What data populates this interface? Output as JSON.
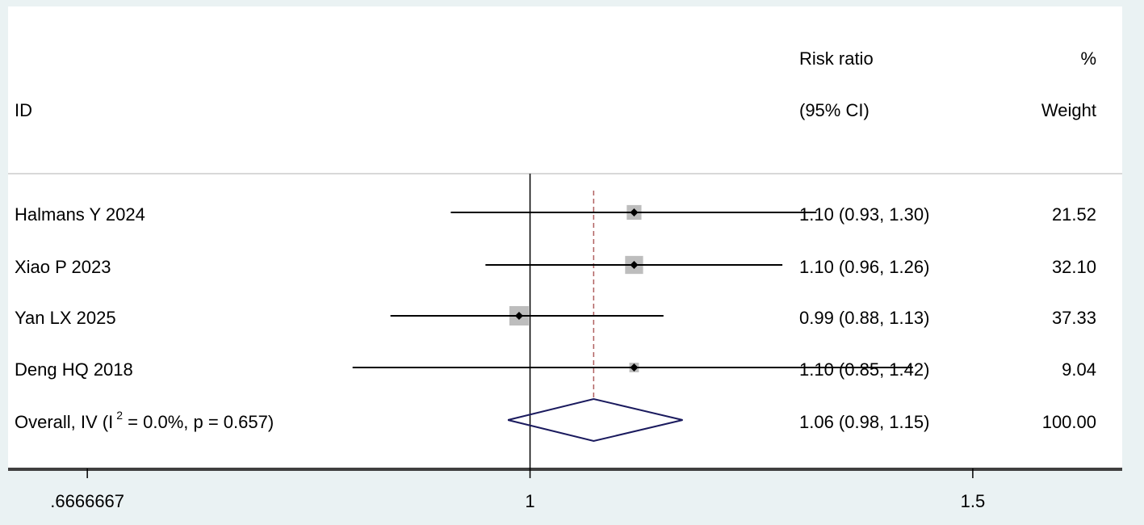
{
  "chart_data": {
    "type": "forest",
    "header": {
      "id": "ID",
      "effect_line1": "Risk ratio",
      "effect_line2": "(95% CI)",
      "weight_line1": "%",
      "weight_line2": "Weight"
    },
    "scale": "log",
    "xlim": [
      0.62,
      1.72
    ],
    "null_value": 1,
    "xticks": [
      {
        "value": 0.6666667,
        "label": ".6666667"
      },
      {
        "value": 1,
        "label": "1"
      },
      {
        "value": 1.5,
        "label": "1.5"
      }
    ],
    "studies": [
      {
        "id": "Halmans Y 2024",
        "rr": 1.1,
        "lo": 0.93,
        "hi": 1.3,
        "rr_text": "1.10 (0.93, 1.30)",
        "weight": "21.52"
      },
      {
        "id": "Xiao P 2023",
        "rr": 1.1,
        "lo": 0.96,
        "hi": 1.26,
        "rr_text": "1.10 (0.96, 1.26)",
        "weight": "32.10"
      },
      {
        "id": "Yan LX 2025",
        "rr": 0.99,
        "lo": 0.88,
        "hi": 1.13,
        "rr_text": "0.99 (0.88, 1.13)",
        "weight": "37.33"
      },
      {
        "id": "Deng HQ 2018",
        "rr": 1.1,
        "lo": 0.85,
        "hi": 1.42,
        "rr_text": "1.10 (0.85, 1.42)",
        "weight": "9.04"
      }
    ],
    "overall": {
      "label_prefix": "Overall, IV (I",
      "label_sup": "2",
      "label_suffix": " = 0.0%, p = 0.657)",
      "rr": 1.06,
      "lo": 0.98,
      "hi": 1.15,
      "rr_text": "1.06 (0.98, 1.15)",
      "weight": "100.00"
    },
    "colors": {
      "ci_line": "#000000",
      "weight_box": "#bdbdbd",
      "point": "#000000",
      "null_line": "#000000",
      "overall_line": "#b06060",
      "diamond": "#1a1a5e",
      "frame_line": "#cccccc"
    }
  }
}
